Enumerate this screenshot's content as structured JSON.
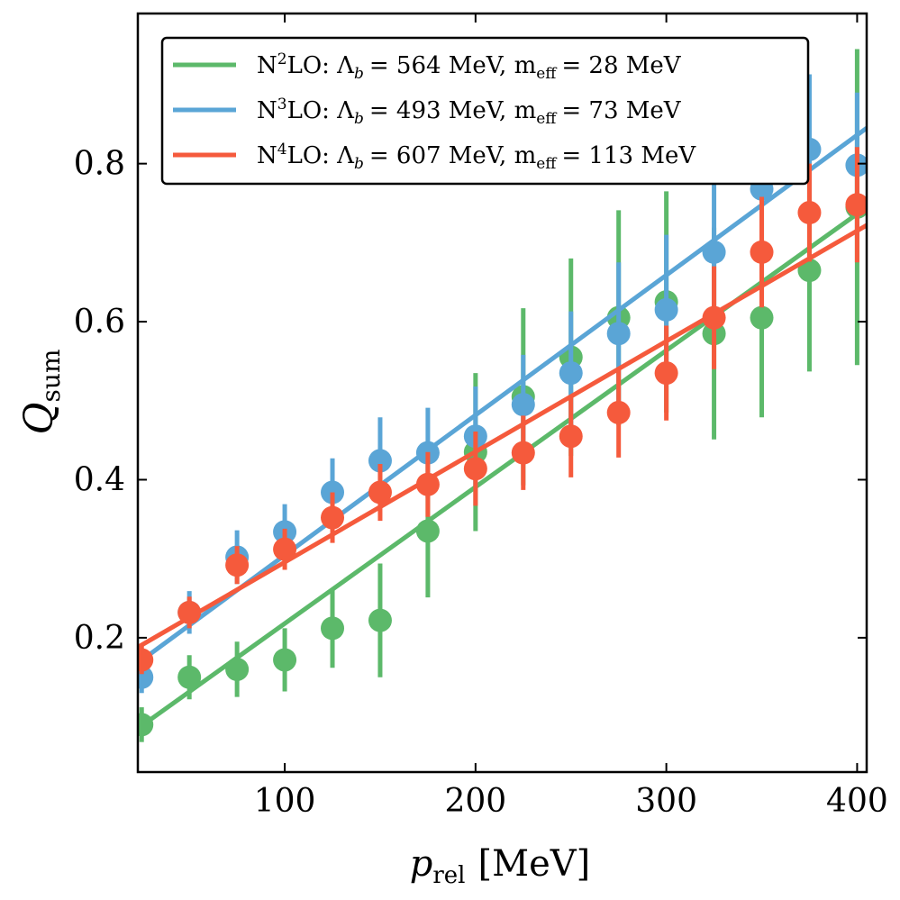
{
  "chart_data": {
    "type": "scatter",
    "xlabel": "p_rel [MeV]",
    "xlabel_parts": {
      "var": "p",
      "sub": "rel",
      "unit": "[MeV]"
    },
    "ylabel": "Q_sum",
    "ylabel_parts": {
      "var": "Q",
      "sub": "sum"
    },
    "xlim": [
      23,
      405
    ],
    "ylim": [
      0.03,
      0.99
    ],
    "xticks": [
      100,
      200,
      300,
      400
    ],
    "xtick_labels": [
      "100",
      "200",
      "300",
      "400"
    ],
    "yticks": [
      0.2,
      0.4,
      0.6,
      0.8
    ],
    "ytick_labels": [
      "0.2",
      "0.4",
      "0.6",
      "0.8"
    ],
    "legend_position": "top-left",
    "grid": false,
    "x": [
      25,
      50,
      75,
      100,
      125,
      150,
      175,
      200,
      225,
      250,
      275,
      300,
      325,
      350,
      375,
      400
    ],
    "series": [
      {
        "name": "N2LO: Λb = 564 MeV, m_eff = 28 MeV",
        "label_parts": {
          "order": "N",
          "sup": "2",
          "rest": "LO: Λ",
          "b_sub": "b",
          "lam": "= 564 MeV, m",
          "eff_sub": "eff",
          "meff": "= 28 MeV"
        },
        "color": "#5cb96a",
        "y": [
          0.09,
          0.15,
          0.16,
          0.172,
          0.212,
          0.222,
          0.335,
          0.435,
          0.505,
          0.555,
          0.605,
          0.625,
          0.585,
          0.605,
          0.665,
          0.745
        ],
        "err": [
          0.022,
          0.028,
          0.035,
          0.04,
          0.05,
          0.072,
          0.084,
          0.1,
          0.112,
          0.125,
          0.136,
          0.14,
          0.134,
          0.126,
          0.128,
          0.2
        ],
        "fit": [
          [
            23,
            0.085
          ],
          [
            405,
            0.745
          ]
        ]
      },
      {
        "name": "N3LO: Λb = 493 MeV, m_eff = 73 MeV",
        "label_parts": {
          "order": "N",
          "sup": "3",
          "rest": "LO: Λ",
          "b_sub": "b",
          "lam": "= 493 MeV, m",
          "eff_sub": "eff",
          "meff": "= 73 MeV"
        },
        "color": "#5aa5d6",
        "y": [
          0.15,
          0.232,
          0.302,
          0.334,
          0.384,
          0.424,
          0.434,
          0.455,
          0.495,
          0.535,
          0.585,
          0.615,
          0.688,
          0.768,
          0.818,
          0.798
        ],
        "err": [
          0.02,
          0.027,
          0.034,
          0.035,
          0.043,
          0.055,
          0.057,
          0.063,
          0.063,
          0.078,
          0.09,
          0.095,
          0.108,
          0.09,
          0.095,
          0.092
        ],
        "fit": [
          [
            23,
            0.168
          ],
          [
            405,
            0.845
          ]
        ]
      },
      {
        "name": "N4LO: Λb = 607 MeV, m_eff = 113 MeV",
        "label_parts": {
          "order": "N",
          "sup": "4",
          "rest": "LO: Λ",
          "b_sub": "b",
          "lam": "= 607 MeV, m",
          "eff_sub": "eff",
          "meff": "= 113 MeV"
        },
        "color": "#f55a3c",
        "y": [
          0.172,
          0.232,
          0.292,
          0.312,
          0.352,
          0.384,
          0.394,
          0.414,
          0.434,
          0.455,
          0.485,
          0.535,
          0.605,
          0.688,
          0.738,
          0.748
        ],
        "err": [
          0.018,
          0.02,
          0.024,
          0.026,
          0.032,
          0.036,
          0.041,
          0.047,
          0.047,
          0.052,
          0.057,
          0.06,
          0.065,
          0.07,
          0.062,
          0.073
        ],
        "fit": [
          [
            23,
            0.188
          ],
          [
            405,
            0.722
          ]
        ]
      }
    ]
  }
}
